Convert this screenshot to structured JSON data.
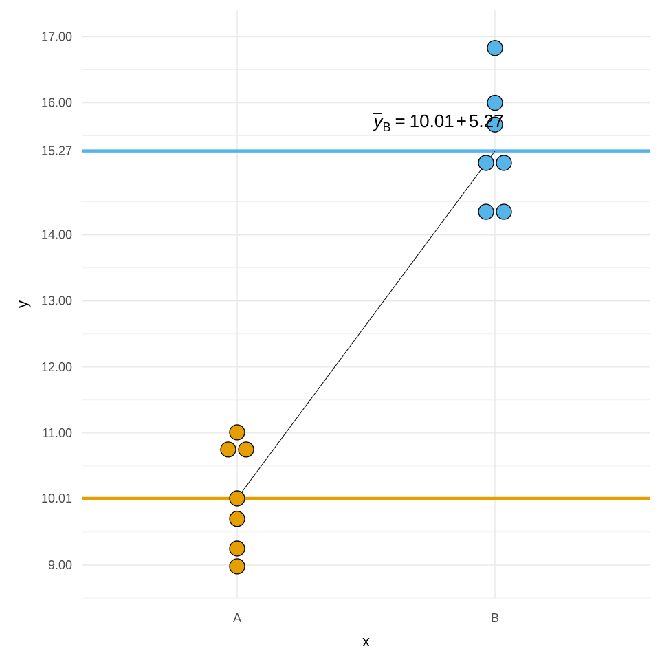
{
  "chart_data": {
    "type": "scatter",
    "title": "",
    "xlabel": "x",
    "ylabel": "y",
    "categories": [
      "A",
      "B"
    ],
    "ylim": [
      8.5,
      17.4
    ],
    "y_ticks": [
      {
        "value": 9.0,
        "label": "9.00"
      },
      {
        "value": 10.01,
        "label": "10.01"
      },
      {
        "value": 11.0,
        "label": "11.00"
      },
      {
        "value": 12.0,
        "label": "12.00"
      },
      {
        "value": 13.0,
        "label": "13.00"
      },
      {
        "value": 14.0,
        "label": "14.00"
      },
      {
        "value": 15.27,
        "label": "15.27"
      },
      {
        "value": 16.0,
        "label": "16.00"
      },
      {
        "value": 17.0,
        "label": "17.00"
      }
    ],
    "y_minor_ticks": [
      8.5,
      9.5,
      10.5,
      11.5,
      12.5,
      13.5,
      14.5,
      15.5,
      16.5
    ],
    "grid": true,
    "series": [
      {
        "category": "A",
        "color": "#E69F00",
        "points": [
          {
            "y": 11.01,
            "offset": 0
          },
          {
            "y": 10.75,
            "offset": -1
          },
          {
            "y": 10.75,
            "offset": 1
          },
          {
            "y": 10.01,
            "offset": 0
          },
          {
            "y": 9.7,
            "offset": 0
          },
          {
            "y": 9.25,
            "offset": 0
          },
          {
            "y": 8.98,
            "offset": 0
          }
        ]
      },
      {
        "category": "B",
        "color": "#56B4E9",
        "points": [
          {
            "y": 16.83,
            "offset": 0
          },
          {
            "y": 16.0,
            "offset": 0
          },
          {
            "y": 15.67,
            "offset": 0
          },
          {
            "y": 15.09,
            "offset": -1
          },
          {
            "y": 15.09,
            "offset": 1
          },
          {
            "y": 14.35,
            "offset": -1
          },
          {
            "y": 14.35,
            "offset": 1
          }
        ]
      }
    ],
    "hlines": [
      {
        "y": 10.01,
        "color": "#E69F00"
      },
      {
        "y": 15.27,
        "color": "#56B4E9"
      }
    ],
    "segment": {
      "from": {
        "category": "A",
        "y": 10.01
      },
      "to": {
        "category": "B",
        "y": 15.27
      },
      "color": "#000000"
    },
    "annotation": {
      "y_symbol": "y",
      "subscript": "B",
      "equals": "=",
      "intercept": "10.01",
      "plus": "+",
      "slope": "5.27",
      "category": "B",
      "y": 15.67
    }
  }
}
